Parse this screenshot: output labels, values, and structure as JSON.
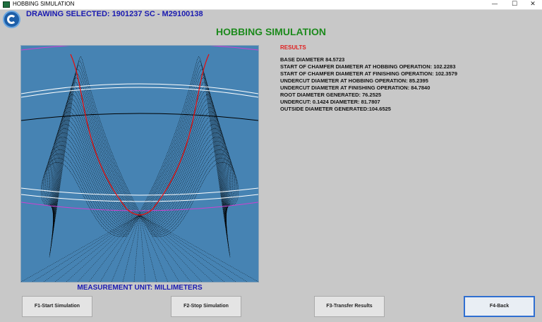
{
  "window": {
    "title": "HOBBING SIMULATION",
    "controls": {
      "minimize": "—",
      "maximize": "☐",
      "close": "✕"
    }
  },
  "header": {
    "drawing_selected": "DRAWING SELECTED: 1901237 SC - M29100138",
    "title": "HOBBING SIMULATION",
    "logo_icon": "company-logo-icon"
  },
  "results": {
    "title": "RESULTS",
    "lines": [
      "BASE DIAMETER  84.5723",
      "START OF CHAMFER DIAMETER AT HOBBING OPERATION: 102.2283",
      "START OF CHAMFER DIAMETER AT FINISHING OPERATION: 102.3579",
      "UNDERCUT DIAMETER AT HOBBING OPERATION: 85.2395",
      "UNDERCUT DIAMETER AT FINISHING OPERATION: 84.7840",
      "ROOT DIAMETER GENERATED: 76.2525",
      "UNDERCUT: 0.1424 DIAMETER: 81.7807",
      "OUTSIDE DIAMETER GENERATED:104.6525"
    ]
  },
  "measurement_unit": "MEASUREMENT UNIT: MILLIMETERS",
  "buttons": {
    "start": "F1-Start Simulation",
    "stop": "F2-Stop Simulation",
    "transfer": "F3-Transfer Results",
    "back": "F4-Back"
  },
  "colors": {
    "plot_background": "#4683b3",
    "hob_trace": "#000000",
    "tooth_profile": "#e01010",
    "outside_circle": "#d040d0",
    "reference_circles": "#ffffff",
    "title_green": "#1d8a1d",
    "label_blue": "#1a1ab0",
    "results_red": "#e02020"
  }
}
